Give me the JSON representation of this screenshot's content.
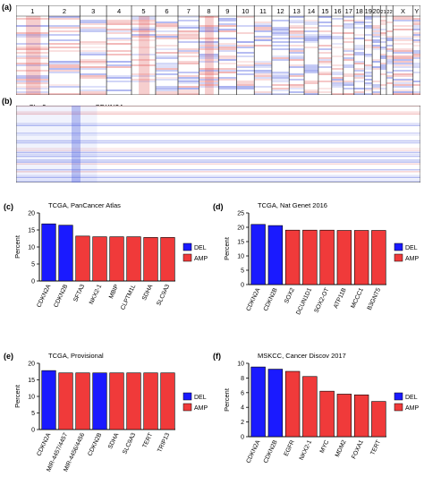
{
  "panel_a": {
    "label": "(a)",
    "chromosomes": [
      "1",
      "2",
      "3",
      "4",
      "5",
      "6",
      "7",
      "8",
      "9",
      "10",
      "11",
      "12",
      "13",
      "14",
      "15",
      "16",
      "17",
      "18",
      "19",
      "20",
      "21",
      "22",
      "X",
      "Y"
    ],
    "chrom_widths": [
      7.6,
      7.2,
      6.2,
      5.8,
      5.6,
      5.2,
      4.9,
      4.5,
      4.2,
      4.1,
      4.1,
      4.0,
      3.5,
      3.3,
      3.1,
      2.7,
      2.5,
      2.4,
      1.8,
      1.9,
      1.4,
      1.5,
      4.7,
      1.7
    ]
  },
  "panel_b": {
    "label": "(b)",
    "chrom_label": "Chr 9",
    "gene_label": "CDKN2A"
  },
  "colors": {
    "del": "#1a1aff",
    "amp": "#f03a3a",
    "heat_red": "#e05050",
    "heat_blue": "#5060e0"
  },
  "legend": {
    "del": "DEL",
    "amp": "AMP"
  },
  "chart_data": [
    {
      "panel": "(c)",
      "type": "bar",
      "title": "TCGA, PanCancer Atlas",
      "ylabel": "Percent",
      "ylim": [
        0,
        20
      ],
      "yticks": [
        0,
        5,
        10,
        15,
        20
      ],
      "categories": [
        "CDKN2A",
        "CDKN2B",
        "SFTA3",
        "NKX2-1",
        "MBIP",
        "CLPTM1L",
        "SDHA",
        "SLC9A3"
      ],
      "values": [
        16.8,
        16.4,
        13.2,
        13.0,
        13.0,
        13.0,
        12.8,
        12.8
      ],
      "types": [
        "DEL",
        "DEL",
        "AMP",
        "AMP",
        "AMP",
        "AMP",
        "AMP",
        "AMP"
      ]
    },
    {
      "panel": "(d)",
      "type": "bar",
      "title": "TCGA, Nat Genet 2016",
      "ylabel": "Percent",
      "ylim": [
        0,
        25
      ],
      "yticks": [
        0,
        5,
        10,
        15,
        20,
        25
      ],
      "categories": [
        "CDKN2A",
        "CDKN2B",
        "SOX2",
        "DCUN1D1",
        "SOX2-OT",
        "ATP11B",
        "MCCC1",
        "B3GNT5"
      ],
      "values": [
        21.0,
        20.6,
        19.0,
        19.0,
        19.0,
        18.9,
        18.9,
        18.9
      ],
      "types": [
        "DEL",
        "DEL",
        "AMP",
        "AMP",
        "AMP",
        "AMP",
        "AMP",
        "AMP"
      ]
    },
    {
      "panel": "(e)",
      "type": "bar",
      "title": "TCGA, Provisional",
      "ylabel": "Percent",
      "ylim": [
        0,
        20
      ],
      "yticks": [
        0,
        5,
        10,
        15,
        20
      ],
      "categories": [
        "CDKN2A",
        "MIR-4457/4457",
        "MIR-4456/4456",
        "CDKN2B",
        "SDHA",
        "SLC9A3",
        "TERT",
        "TRIP13"
      ],
      "values": [
        17.8,
        17.1,
        17.1,
        17.1,
        17.1,
        17.1,
        17.1,
        17.1
      ],
      "types": [
        "DEL",
        "AMP",
        "AMP",
        "DEL",
        "AMP",
        "AMP",
        "AMP",
        "AMP"
      ]
    },
    {
      "panel": "(f)",
      "type": "bar",
      "title": "MSKCC, Cancer Discov 2017",
      "ylabel": "Percent",
      "ylim": [
        0,
        10
      ],
      "yticks": [
        0,
        2,
        4,
        6,
        8,
        10
      ],
      "categories": [
        "CDKN2A",
        "CDKN2B",
        "EGFR",
        "NKX2-1",
        "MYC",
        "MDM2",
        "FOXA1",
        "TERT"
      ],
      "values": [
        9.5,
        9.2,
        8.9,
        8.2,
        6.2,
        5.8,
        5.7,
        4.8
      ],
      "types": [
        "DEL",
        "DEL",
        "AMP",
        "AMP",
        "AMP",
        "AMP",
        "AMP",
        "AMP"
      ]
    }
  ]
}
